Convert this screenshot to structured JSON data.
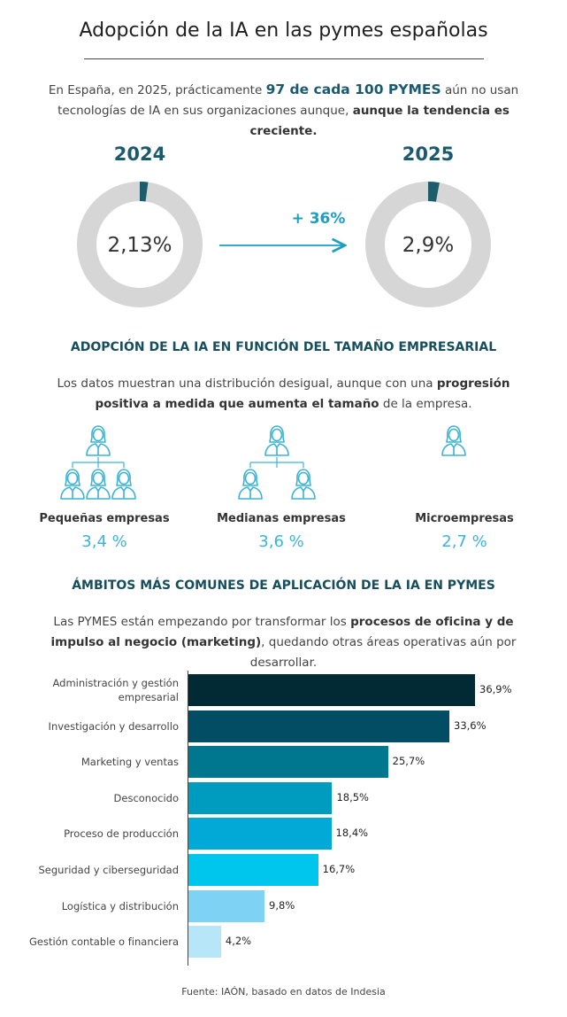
{
  "header": {
    "title": "Adopción de la IA en las pymes españolas"
  },
  "intro": {
    "segments": [
      "En España, en 2025, prácticamente ",
      "97 de cada 100 PYMES",
      " aún no usan tecnologías de IA en sus organizaciones aunque, ",
      "aunque la tendencia es creciente."
    ]
  },
  "donuts": {
    "items": [
      {
        "year": "2024",
        "value": 2.13,
        "label": "2,13%"
      },
      {
        "year": "2025",
        "value": 2.9,
        "label": "2,9%"
      }
    ],
    "change": "+ 36%"
  },
  "size": {
    "title": "ADOPCIÓN DE LA IA EN FUNCIÓN DEL TAMAÑO EMPRESARIAL",
    "segments": [
      "Los datos muestran una distribución desigual, aunque con una ",
      "progresión positiva a medida que aumenta el tamaño",
      " de la empresa."
    ],
    "items": [
      {
        "name": "Pequeñas empresas",
        "value": 3.4,
        "label": "3,4 %"
      },
      {
        "name": "Medianas empresas",
        "value": 3.6,
        "label": "3,6 %"
      },
      {
        "name": "Microempresas",
        "value": 2.7,
        "label": "2,7 %"
      }
    ]
  },
  "areas": {
    "title": "ÁMBITOS MÁS COMUNES DE APLICACIÓN DE LA IA EN PYMES",
    "segments": [
      "Las PYMES están empezando por transformar los ",
      "procesos de oficina y de impulso al negocio (marketing)",
      ", quedando otras áreas operativas aún por desarrollar."
    ]
  },
  "chart_data": {
    "type": "bar",
    "orientation": "horizontal",
    "categories": [
      "Administración y gestión empresarial",
      "Investigación y desarrollo",
      "Marketing y ventas",
      "Desconocido",
      "Proceso de producción",
      "Seguridad y ciberseguridad",
      "Logística y distribución",
      "Gestión contable o financiera"
    ],
    "values": [
      36.9,
      33.6,
      25.7,
      18.5,
      18.4,
      16.7,
      9.8,
      4.2
    ],
    "value_labels": [
      "36,9%",
      "33,6%",
      "25,7%",
      "18,5%",
      "18,4%",
      "16,7%",
      "9,8%",
      "4,2%"
    ],
    "colors": [
      "#012a35",
      "#024d63",
      "#00778f",
      "#009cc0",
      "#00a9d6",
      "#00c6ee",
      "#7ed3f5",
      "#b6e6f7"
    ]
  },
  "footer": {
    "source": "Fuente: IAÓN, basado en datos de Indesia"
  }
}
